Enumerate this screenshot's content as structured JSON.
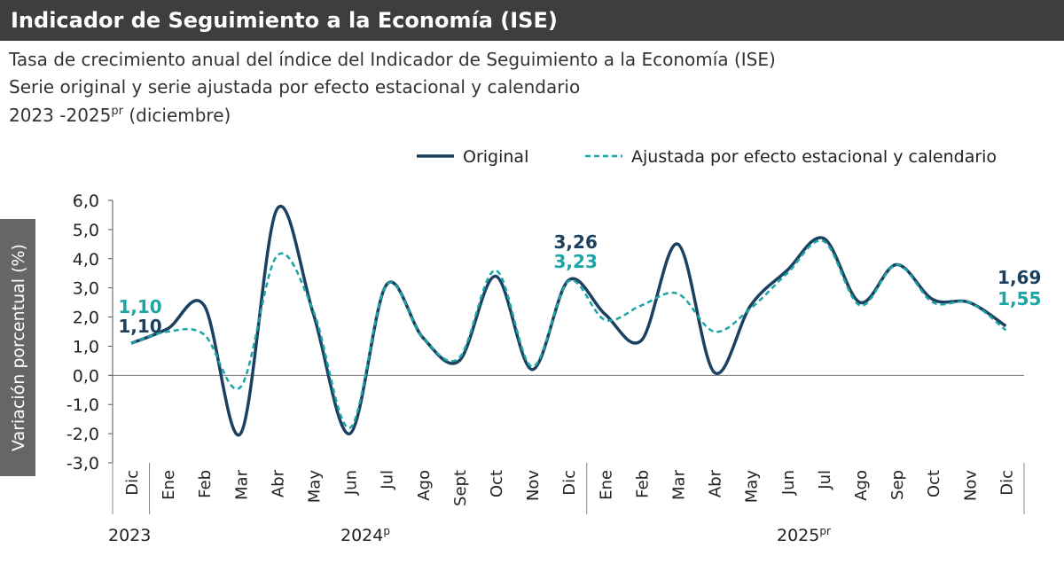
{
  "chart_data": {
    "type": "line",
    "title": "Indicador de Seguimiento a la Economía (ISE)",
    "subtitle_1": "Tasa de crecimiento anual del índice del Indicador de Seguimiento a la Economía (ISE)",
    "subtitle_2": "Serie original y serie ajustada por efecto estacional y calendario",
    "subtitle_3": [
      "2023 -2025",
      "pr",
      " (diciembre)"
    ],
    "y_label": "Variación porcentual (%)",
    "categories": [
      "Dic",
      "Ene",
      "Feb",
      "Mar",
      "Abr",
      "May",
      "Jun",
      "Jul",
      "Ago",
      "Sept",
      "Oct",
      "Nov",
      "Dic",
      "Ene",
      "Feb",
      "Mar",
      "Abr",
      "May",
      "Jun",
      "Jul",
      "Ago",
      "Sep",
      "Oct",
      "Nov",
      "Dic"
    ],
    "year_labels": [
      {
        "text": "2023",
        "sup": null
      },
      {
        "text": "2024",
        "sup": "p"
      },
      {
        "text": "2025",
        "sup": "pr"
      }
    ],
    "series": [
      {
        "name": "Original",
        "color": "#1b4060",
        "dashed": false,
        "values": [
          1.1,
          1.6,
          2.4,
          -2.0,
          5.7,
          2.1,
          -2.0,
          3.1,
          1.3,
          0.5,
          3.4,
          0.2,
          3.26,
          2.1,
          1.2,
          4.5,
          0.1,
          2.4,
          3.6,
          4.7,
          2.5,
          3.8,
          2.6,
          2.5,
          1.69
        ],
        "value_labels": [
          "1,10",
          null,
          null,
          null,
          null,
          null,
          null,
          null,
          null,
          null,
          null,
          null,
          "3,26",
          null,
          null,
          null,
          null,
          null,
          null,
          null,
          null,
          null,
          null,
          null,
          "1,69"
        ]
      },
      {
        "name": "Ajustada por efecto estacional y calendario",
        "color": "#1aa6a6",
        "dashed": true,
        "values": [
          1.1,
          1.5,
          1.4,
          -0.4,
          4.1,
          2.2,
          -1.8,
          3.1,
          1.3,
          0.6,
          3.6,
          0.3,
          3.23,
          1.9,
          2.4,
          2.8,
          1.5,
          2.3,
          3.5,
          4.6,
          2.4,
          3.8,
          2.5,
          2.5,
          1.55
        ],
        "value_labels": [
          "1,10",
          null,
          null,
          null,
          null,
          null,
          null,
          null,
          null,
          null,
          null,
          null,
          "3,23",
          null,
          null,
          null,
          null,
          null,
          null,
          null,
          null,
          null,
          null,
          null,
          "1,55"
        ]
      }
    ],
    "ylim": [
      -3,
      6
    ],
    "yticks": [
      {
        "value": 6,
        "label": "6,0"
      },
      {
        "value": 5,
        "label": "5,0"
      },
      {
        "value": 4,
        "label": "4,0"
      },
      {
        "value": 3,
        "label": "3,0"
      },
      {
        "value": 2,
        "label": "2,0"
      },
      {
        "value": 1,
        "label": "1,0"
      },
      {
        "value": 0,
        "label": "0,0"
      },
      {
        "value": -1,
        "label": "-1,0"
      },
      {
        "value": -2,
        "label": "-2,0"
      },
      {
        "value": -3,
        "label": "-3,0"
      }
    ]
  }
}
